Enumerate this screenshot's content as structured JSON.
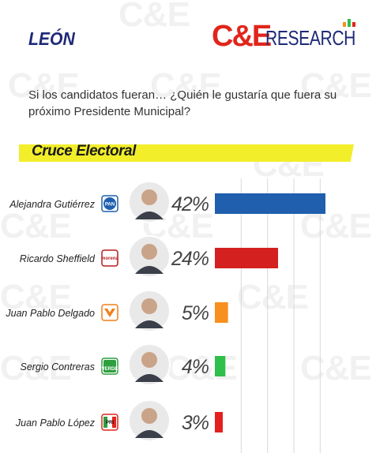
{
  "header": {
    "city": "LEÓN",
    "brand": {
      "prefix": "C&E",
      "suffix": "RESEARCH"
    }
  },
  "question": "Si los candidatos fueran… ¿Quién le gustaría que fuera su próximo Presidente Municipal?",
  "banner": {
    "label": "Cruce Electoral"
  },
  "colors": {
    "brand_red": "#e1251b",
    "brand_blue": "#1e2a78",
    "banner_yellow": "#f2ee2a"
  },
  "chart_data": {
    "type": "bar",
    "orientation": "horizontal",
    "categories": [
      "Alejandra Gutiérrez",
      "Ricardo Sheffield",
      "Juan Pablo Delgado",
      "Sergio Contreras",
      "Juan Pablo López"
    ],
    "values": [
      42,
      24,
      5,
      4,
      3
    ],
    "labels": [
      "42%",
      "24%",
      "5%",
      "4%",
      "3%"
    ],
    "parties": [
      {
        "name": "PAN",
        "text": "PAN",
        "icon": "pan-logo",
        "color": "#1f5fae"
      },
      {
        "name": "morena",
        "text": "morena",
        "icon": "morena-logo",
        "color": "#b71c1c"
      },
      {
        "name": "Movimiento Ciudadano",
        "text": "",
        "icon": "mc-logo",
        "color": "#ef7f1a"
      },
      {
        "name": "VERDE",
        "text": "VERDE",
        "icon": "verde-logo",
        "color": "#2e9e3f"
      },
      {
        "name": "PRI",
        "text": "PRI",
        "icon": "pri-logo",
        "color": "#e1251b"
      }
    ],
    "bar_colors": [
      "#1f5fae",
      "#d4201f",
      "#f7901e",
      "#2fbf4a",
      "#e3201f"
    ],
    "xlim": [
      0,
      45
    ],
    "gridlines": [
      10,
      20,
      30,
      40
    ],
    "grid": true,
    "legend": "none"
  }
}
